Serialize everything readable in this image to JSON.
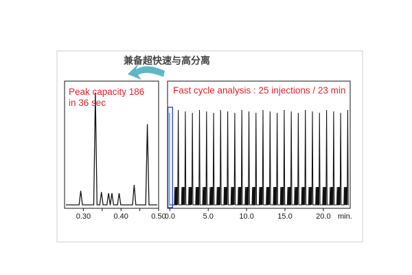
{
  "header": {
    "caption": "兼备超快速与高分离",
    "arrow_icon": "curved-arrow-icon",
    "arrow_color": "#5fb7c6",
    "caption_color": "#444444"
  },
  "colors": {
    "annotation_red": "#e8202a",
    "trace": "#111111",
    "highlight_box": "#1f3fd2",
    "highlight_trace": "#6fa88e"
  },
  "chart_data": [
    {
      "type": "line",
      "title": "Peak capacity 186",
      "subtitle": "in 36 sec",
      "xlabel": "",
      "ylabel": "",
      "xlim": [
        0.25,
        0.5
      ],
      "ylim": [
        0,
        100
      ],
      "x_ticks": [
        0.3,
        0.35,
        0.4,
        0.45,
        0.5
      ],
      "x_tick_labels": [
        "0.30",
        "",
        "0.40",
        "",
        "0.50"
      ],
      "grid": false,
      "peaks": [
        {
          "x": 0.293,
          "height": 12
        },
        {
          "x": 0.332,
          "height": 96
        },
        {
          "x": 0.348,
          "height": 11
        },
        {
          "x": 0.367,
          "height": 10
        },
        {
          "x": 0.376,
          "height": 10
        },
        {
          "x": 0.395,
          "height": 10
        },
        {
          "x": 0.435,
          "height": 17
        },
        {
          "x": 0.47,
          "height": 69
        }
      ]
    },
    {
      "type": "line",
      "title": "Fast cycle analysis : 25 injections / 23 min",
      "xlabel": "",
      "unit_label": "min.",
      "ylabel": "",
      "xlim": [
        -0.3,
        23.5
      ],
      "ylim": [
        0,
        100
      ],
      "x_ticks": [
        0,
        5,
        10,
        15,
        20
      ],
      "x_tick_labels": [
        "0.0",
        "5.0",
        "10.0",
        "15.0",
        "20.0"
      ],
      "grid": false,
      "injection_count": 25,
      "cycle_minutes": 0.92,
      "injection_start": 0.55,
      "main_peak_height": 100,
      "main_peak_offset": 0.55,
      "highlighted_injection": {
        "x_start": -0.25,
        "x_end": 0.35
      }
    }
  ]
}
